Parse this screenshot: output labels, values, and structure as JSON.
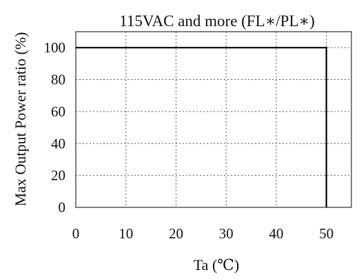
{
  "chart_data": {
    "type": "line",
    "title": "115VAC and  more (FL∗/PL∗)",
    "xlabel": "Ta (℃)",
    "ylabel": "Max Output Power ratio (%)",
    "xlim": [
      0,
      55
    ],
    "ylim": [
      0,
      110
    ],
    "x_ticks": [
      "0",
      "10",
      "20",
      "30",
      "40",
      "50"
    ],
    "y_ticks": [
      "0",
      "20",
      "40",
      "60",
      "80",
      "100"
    ],
    "grid": true,
    "series": [
      {
        "x": [
          0,
          50,
          50
        ],
        "y": [
          100,
          100,
          0
        ]
      }
    ],
    "colors": {
      "line": "#000000",
      "grid": "#555555",
      "axes": "#000000"
    }
  }
}
